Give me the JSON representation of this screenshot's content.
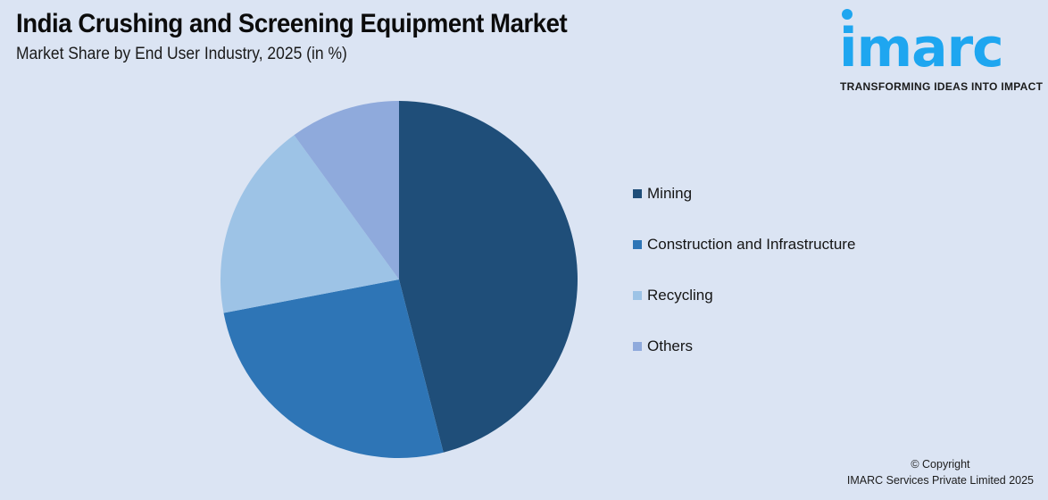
{
  "header": {
    "title": "India Crushing and Screening Equipment Market",
    "subtitle": "Market Share by End User Industry, 2025 (in %)"
  },
  "logo": {
    "wordmark": "imarc",
    "tagline": "TRANSFORMING IDEAS INTO IMPACT",
    "color": "#1ea6f0"
  },
  "legend": {
    "items": [
      {
        "label": "Mining",
        "color": "#1f4e79"
      },
      {
        "label": "Construction and Infrastructure",
        "color": "#2e75b6"
      },
      {
        "label": "Recycling",
        "color": "#9dc3e6"
      },
      {
        "label": "Others",
        "color": "#8faadc"
      }
    ]
  },
  "footer": {
    "copyright_line1": "© Copyright",
    "copyright_line2": "IMARC Services Private Limited 2025"
  },
  "chart_data": {
    "type": "pie",
    "title": "India Crushing and Screening Equipment Market",
    "subtitle": "Market Share by End User Industry, 2025 (in %)",
    "categories": [
      "Mining",
      "Construction and Infrastructure",
      "Recycling",
      "Others"
    ],
    "values": [
      46,
      26,
      18,
      10
    ],
    "colors": [
      "#1f4e79",
      "#2e75b6",
      "#9dc3e6",
      "#8faadc"
    ],
    "start_angle": "12 o'clock, clockwise",
    "legend_position": "right",
    "data_labels": false
  }
}
